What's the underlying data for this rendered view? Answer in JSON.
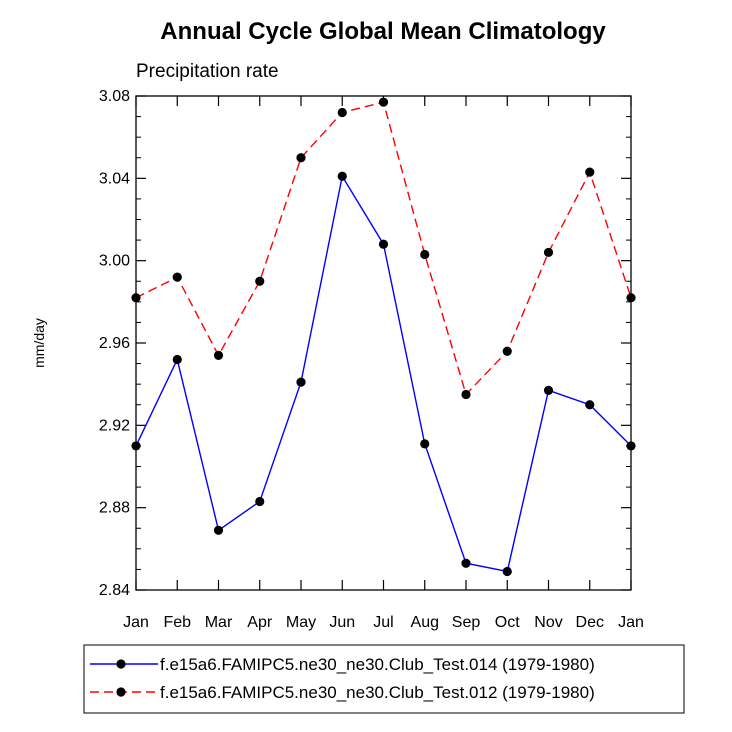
{
  "chart_data": {
    "type": "line",
    "title": "Annual Cycle Global Mean Climatology",
    "subtitle": "Precipitation rate",
    "xlabel": "",
    "ylabel": "mm/day",
    "categories": [
      "Jan",
      "Feb",
      "Mar",
      "Apr",
      "May",
      "Jun",
      "Jul",
      "Aug",
      "Sep",
      "Oct",
      "Nov",
      "Dec",
      "Jan"
    ],
    "ylim": [
      2.84,
      3.08
    ],
    "yticks": [
      "2.84",
      "2.88",
      "2.92",
      "2.96",
      "3.00",
      "3.04",
      "3.08"
    ],
    "grid": false,
    "legend_position": "bottom",
    "series": [
      {
        "name": "f.e15a6.FAMIPC5.ne30_ne30.Club_Test.014 (1979-1980)",
        "color": "#0000ff",
        "style": "solid",
        "marker": "dot",
        "values": [
          2.91,
          2.952,
          2.869,
          2.883,
          2.941,
          3.041,
          3.008,
          2.911,
          2.853,
          2.849,
          2.937,
          2.93,
          2.91
        ]
      },
      {
        "name": "f.e15a6.FAMIPC5.ne30_ne30.Club_Test.012 (1979-1980)",
        "color": "#ff0000",
        "style": "dashed",
        "marker": "dot",
        "values": [
          2.982,
          2.992,
          2.954,
          2.99,
          3.05,
          3.072,
          3.077,
          3.003,
          2.935,
          2.956,
          3.004,
          3.043,
          2.982
        ]
      }
    ]
  }
}
